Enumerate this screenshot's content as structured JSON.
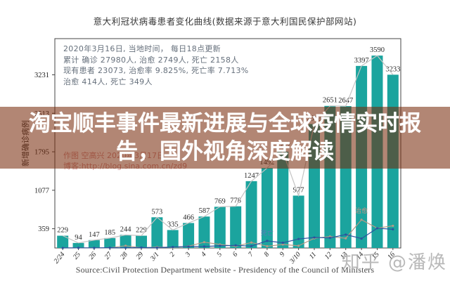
{
  "banner": {
    "line1": "淘宝顺丰事件最新进展与全球疫情实时报",
    "line2": "告，国外视角深度解读"
  },
  "watermarks": {
    "zhihu": "知乎 @潘焕",
    "author_line1": "作图 空高兴 2020年3月17日",
    "author_line2": "博客:http://blog.sina.com.cn/zd9"
  },
  "source_line": "Source:Civil Protection Department website - Presidency of the Council of Ministers",
  "chart_data": {
    "type": "bar",
    "title": "意大利冠状病毒患者变化曲线(数据来源于意大利国民保护部网站)",
    "info_lines": [
      "2020年3月16日, 当地时间， 每日18点更新",
      "累计 确诊 27980人, 治愈 2749人, 死亡 2158人",
      "现有患者 23073, 治愈率 9.825%, 死亡率 7.713%",
      "治愈 414人, 死亡 349人"
    ],
    "ylabel": "新增确诊病例",
    "xlabel": "",
    "categories": [
      "2/24",
      "25",
      "26",
      "27",
      "28",
      "29",
      "3/1",
      "2",
      "3",
      "4",
      "5",
      "6",
      "7",
      "8",
      "9",
      "3/10",
      "11",
      "12",
      "13",
      "14",
      "15",
      "16"
    ],
    "yticks": [
      359,
      1077,
      1795,
      2513,
      3231
    ],
    "ylim": [
      0,
      3906
    ],
    "grid": false,
    "legend": "none",
    "series": [
      {
        "name": "新增确诊",
        "type": "bar",
        "color": "#1ba49e",
        "values": [
          229,
          94,
          147,
          185,
          244,
          229,
          573,
          335,
          466,
          587,
          769,
          778,
          1247,
          1492,
          1797,
          977,
          2313,
          2651,
          2647,
          3397,
          3590,
          3233
        ]
      },
      {
        "name": "新增确诊趋势线",
        "type": "line",
        "color": "#c4c4c4",
        "marker": false,
        "values_from": 0
      },
      {
        "name": "治愈",
        "type": "line",
        "color": "#b49a86",
        "marker": true,
        "values": [
          0,
          1,
          1,
          3,
          42,
          4,
          17,
          11,
          33,
          109,
          66,
          33,
          102,
          33,
          66,
          41,
          181,
          213,
          181,
          527,
          369,
          414
        ]
      },
      {
        "name": "死亡",
        "type": "line",
        "color": "#2a549e",
        "marker": true,
        "values": [
          1,
          3,
          2,
          5,
          4,
          8,
          5,
          18,
          27,
          28,
          41,
          49,
          36,
          133,
          97,
          168,
          196,
          189,
          250,
          175,
          368,
          349
        ]
      }
    ],
    "inline_labels": [
      {
        "text": "治愈",
        "x_index": 19,
        "dy": -10,
        "color": "#c99184"
      },
      {
        "text": "死亡",
        "x_index": 13,
        "dy": -8,
        "color": "#5c7cb8"
      }
    ]
  }
}
